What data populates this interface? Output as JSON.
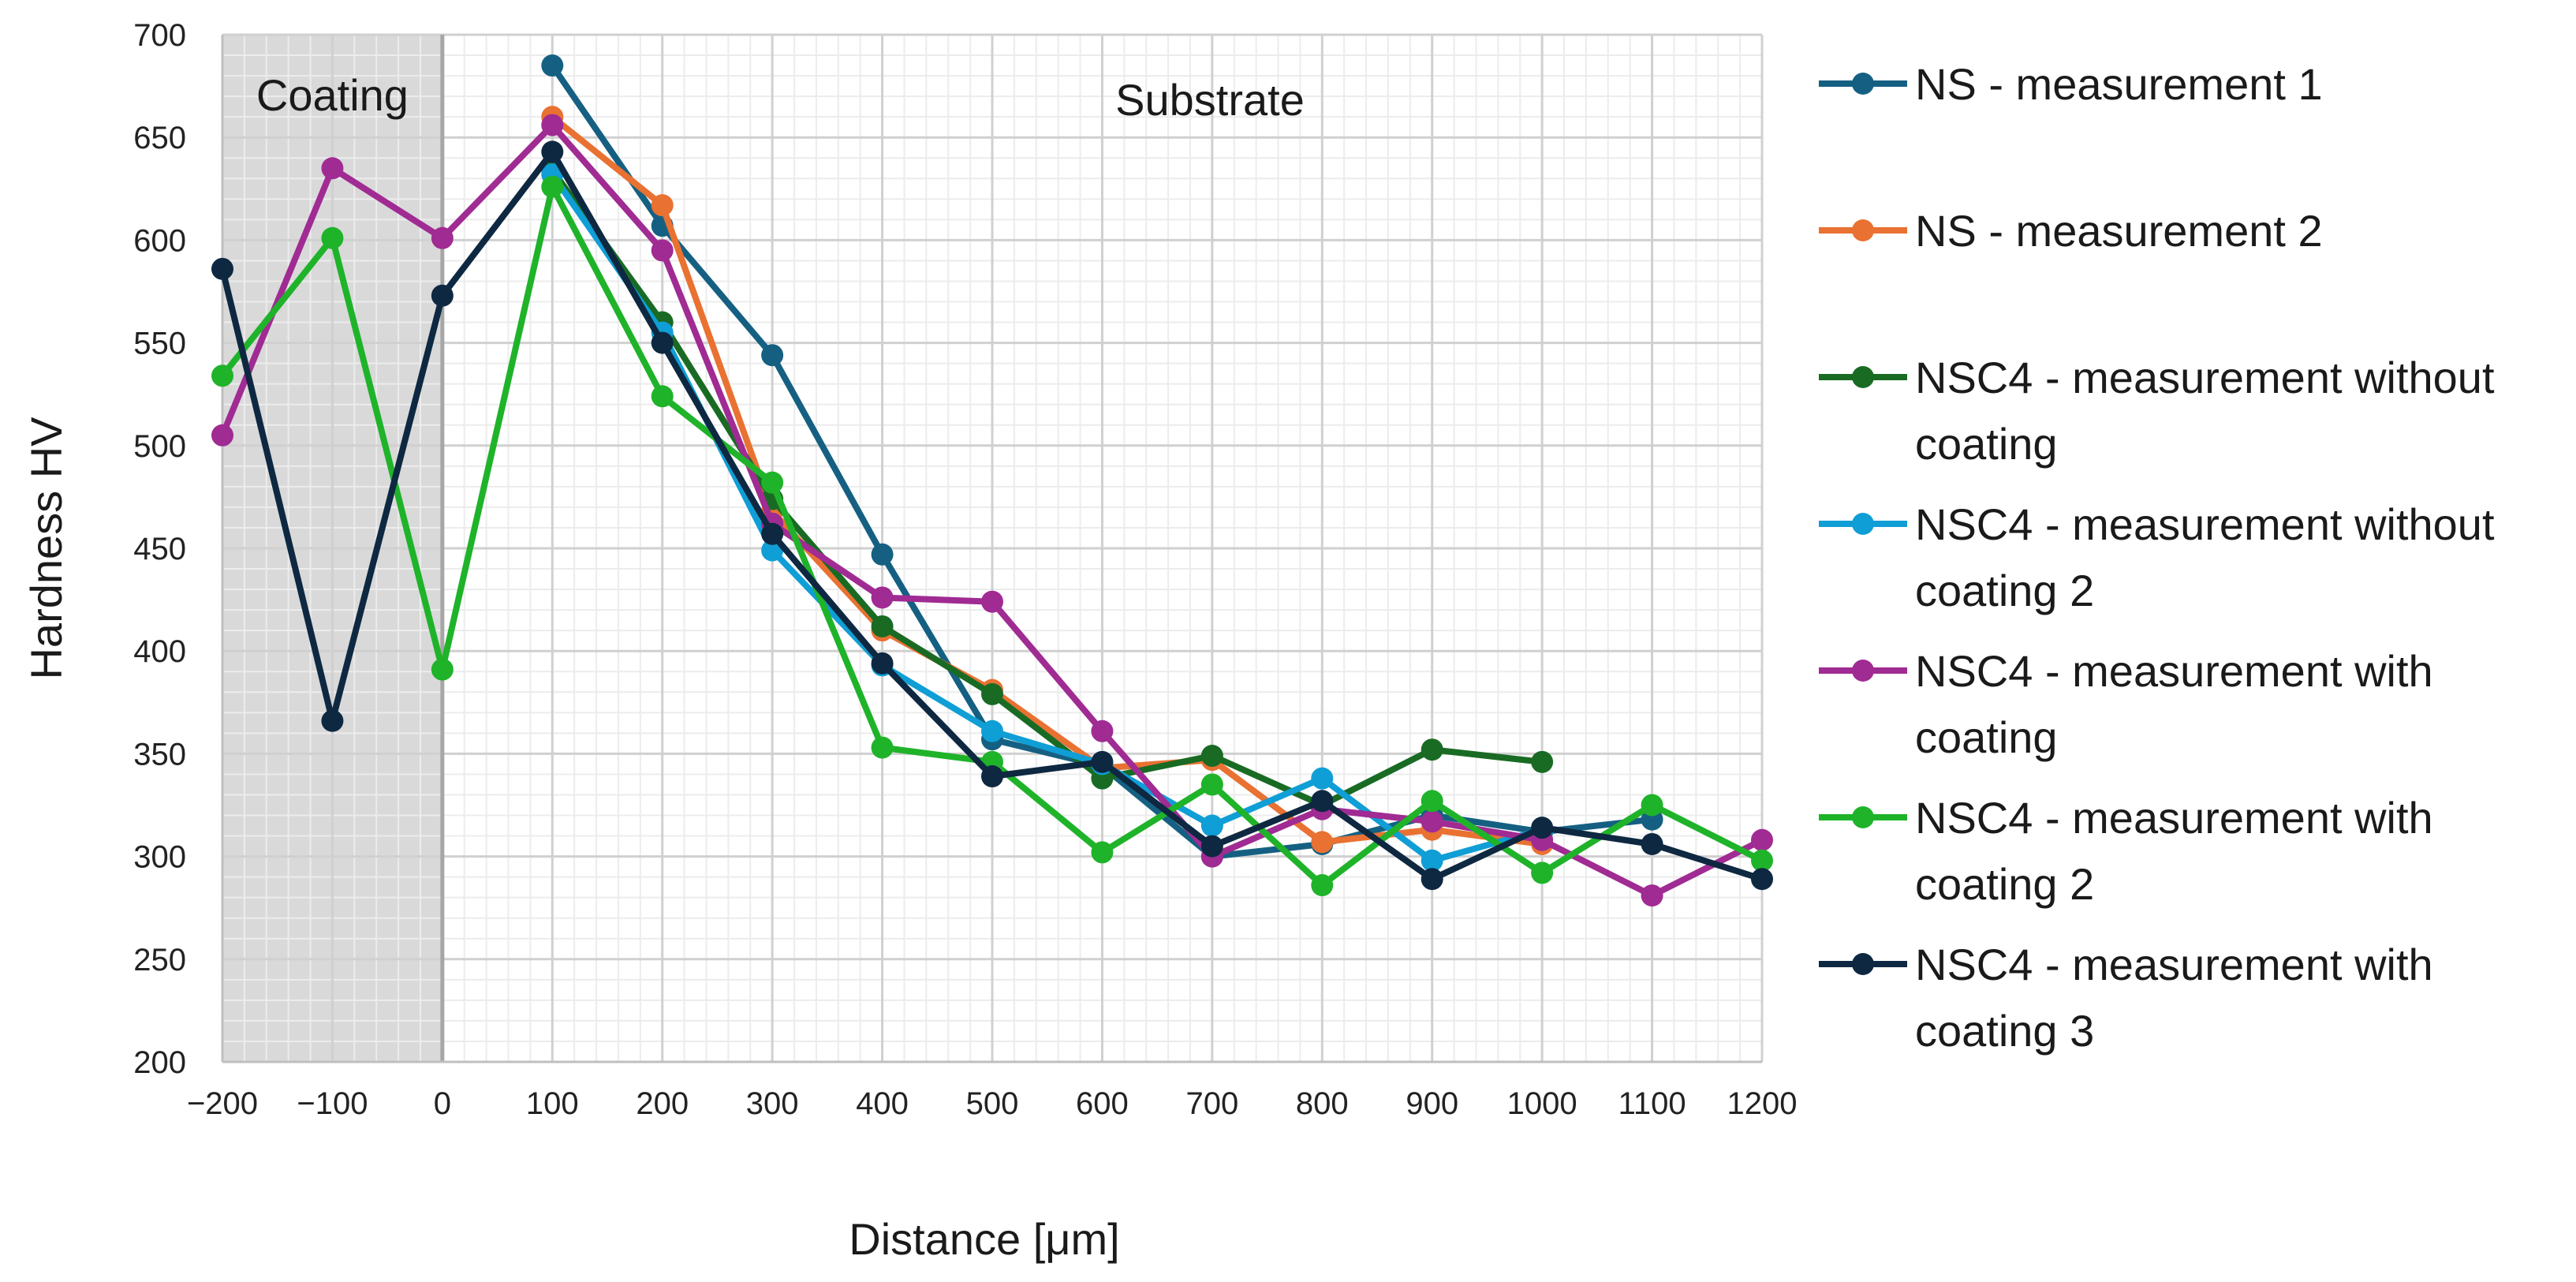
{
  "chart_data": {
    "type": "line",
    "title": "",
    "xlabel": "Distance [μm]",
    "ylabel": "Hardness HV",
    "xlim": [
      -200,
      1200
    ],
    "ylim": [
      200,
      700
    ],
    "x_ticks": [
      -200,
      -100,
      0,
      100,
      200,
      300,
      400,
      500,
      600,
      700,
      800,
      900,
      1000,
      1100,
      1200
    ],
    "x_tick_labels": [
      "−200",
      "−100",
      "0",
      "100",
      "200",
      "300",
      "400",
      "500",
      "600",
      "700",
      "800",
      "900",
      "1000",
      "1100",
      "1200"
    ],
    "y_ticks": [
      200,
      250,
      300,
      350,
      400,
      450,
      500,
      550,
      600,
      650,
      700
    ],
    "grid": true,
    "legend_position": "right",
    "regions": [
      {
        "label": "Coating",
        "x_range": [
          -200,
          0
        ],
        "color": "#d9d9d9"
      },
      {
        "label": "Substrate",
        "x_range": [
          0,
          1200
        ],
        "color": "#ffffff"
      }
    ],
    "series": [
      {
        "name": "NS - measurement 1",
        "legend_lines": [
          "NS - measurement 1"
        ],
        "color": "#156082",
        "x": [
          100,
          200,
          300,
          400,
          500,
          600,
          700,
          800,
          900,
          1000,
          1100
        ],
        "values": [
          685,
          607,
          544,
          447,
          357,
          344,
          300,
          306,
          320,
          312,
          318
        ]
      },
      {
        "name": "NS - measurement 2",
        "legend_lines": [
          "NS - measurement 2"
        ],
        "color": "#e97132",
        "x": [
          100,
          200,
          300,
          400,
          500,
          600,
          700,
          800,
          900,
          1000
        ],
        "values": [
          660,
          617,
          468,
          410,
          381,
          343,
          347,
          307,
          313,
          306
        ]
      },
      {
        "name": "NSC4 - measurement without coating",
        "legend_lines": [
          "NSC4 - measurement without",
          "coating"
        ],
        "color": "#196b24",
        "x": [
          100,
          200,
          300,
          400,
          500,
          600,
          700,
          800,
          900,
          1000
        ],
        "values": [
          634,
          560,
          474,
          412,
          379,
          338,
          349,
          325,
          352,
          346
        ]
      },
      {
        "name": "NSC4 - measurement without coating 2",
        "legend_lines": [
          "NSC4 - measurement without",
          "coating 2"
        ],
        "color": "#0f9ed5",
        "x": [
          100,
          200,
          300,
          400,
          500,
          600,
          700,
          800,
          900,
          1000
        ],
        "values": [
          632,
          555,
          449,
          393,
          361,
          345,
          315,
          338,
          298,
          313
        ]
      },
      {
        "name": "NSC4 - measurement with coating",
        "legend_lines": [
          "NSC4 - measurement with",
          "coating"
        ],
        "color": "#a02b93",
        "x": [
          -200,
          -100,
          0,
          100,
          200,
          300,
          400,
          500,
          600,
          700,
          800,
          900,
          1000,
          1100,
          1200
        ],
        "values": [
          505,
          635,
          601,
          656,
          595,
          462,
          426,
          424,
          361,
          300,
          323,
          317,
          308,
          281,
          308
        ]
      },
      {
        "name": "NSC4 - measurement with coating 2",
        "legend_lines": [
          "NSC4 - measurement with",
          "coating 2"
        ],
        "color": "#1fb32a",
        "x": [
          -200,
          -100,
          0,
          100,
          200,
          300,
          400,
          500,
          600,
          700,
          800,
          900,
          1000,
          1100,
          1200
        ],
        "values": [
          534,
          601,
          391,
          626,
          524,
          482,
          353,
          346,
          302,
          335,
          286,
          327,
          292,
          325,
          298
        ]
      },
      {
        "name": "NSC4 - measurement with coating 3",
        "legend_lines": [
          "NSC4 - measurement with",
          "coating 3"
        ],
        "color": "#0e2841",
        "x": [
          -200,
          -100,
          0,
          100,
          200,
          300,
          400,
          500,
          600,
          700,
          800,
          900,
          1000,
          1100,
          1200
        ],
        "values": [
          586,
          366,
          573,
          643,
          550,
          457,
          394,
          339,
          346,
          305,
          327,
          289,
          314,
          306,
          289
        ]
      }
    ]
  }
}
